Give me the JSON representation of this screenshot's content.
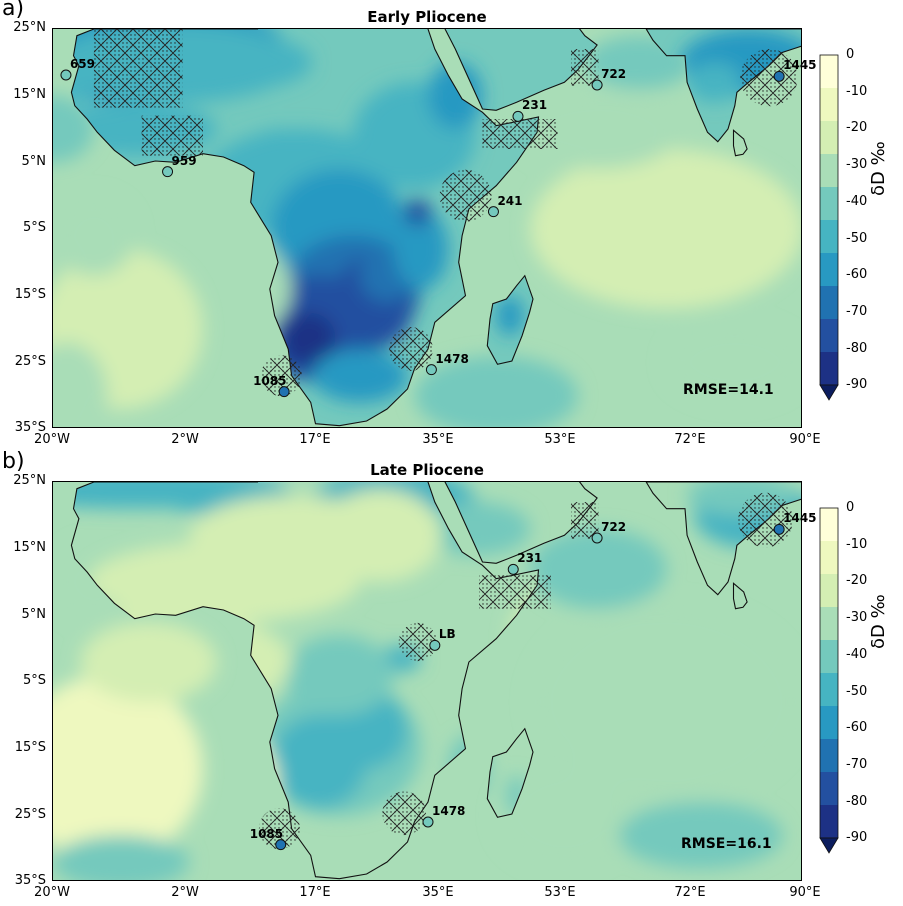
{
  "panels": [
    {
      "tag": "a)",
      "title": "Early Pliocene",
      "rmse": "RMSE=14.1",
      "sites": [
        {
          "label": "659",
          "lon": -18.1,
          "lat": 18.1,
          "depleted": false
        },
        {
          "label": "959",
          "lon": -3.2,
          "lat": 3.6,
          "depleted": false
        },
        {
          "label": "722",
          "lon": 59.8,
          "lat": 16.6,
          "depleted": false
        },
        {
          "label": "231",
          "lon": 48.2,
          "lat": 11.9,
          "depleted": false
        },
        {
          "label": "241",
          "lon": 44.6,
          "lat": -2.4,
          "depleted": false
        },
        {
          "label": "1445",
          "lon": 86.5,
          "lat": 17.9,
          "depleted": true
        },
        {
          "label": "1478",
          "lon": 35.5,
          "lat": -26.1,
          "depleted": false
        },
        {
          "label": "1085",
          "lon": 13.9,
          "lat": -29.4,
          "depleted": true
        }
      ]
    },
    {
      "tag": "b)",
      "title": "Late Pliocene",
      "rmse": "RMSE=16.1",
      "sites": [
        {
          "label": "722",
          "lon": 59.8,
          "lat": 16.6,
          "depleted": false
        },
        {
          "label": "231",
          "lon": 47.5,
          "lat": 11.9,
          "depleted": false
        },
        {
          "label": "LB",
          "lon": 36.0,
          "lat": 0.5,
          "depleted": false
        },
        {
          "label": "1445",
          "lon": 86.5,
          "lat": 17.9,
          "depleted": true
        },
        {
          "label": "1478",
          "lon": 35.0,
          "lat": -26.0,
          "depleted": false
        },
        {
          "label": "1085",
          "lon": 13.4,
          "lat": -29.4,
          "depleted": true
        }
      ]
    }
  ],
  "axes": {
    "lat_ticks": [
      "25°N",
      "15°N",
      "5°N",
      "5°S",
      "15°S",
      "25°S",
      "35°S"
    ],
    "lon_ticks": [
      "20°W",
      "2°W",
      "17°E",
      "35°E",
      "53°E",
      "72°E",
      "90°E"
    ],
    "lon_range": [
      -20,
      90
    ],
    "lat_range": [
      -35,
      25
    ]
  },
  "colorbar": {
    "unit": "δD ‰",
    "ticks": [
      "0",
      "-10",
      "-20",
      "-30",
      "-40",
      "-50",
      "-60",
      "-70",
      "-80",
      "-90"
    ],
    "colors": [
      "#ffffd9",
      "#eef8bf",
      "#d4eeb3",
      "#a9ddb7",
      "#74c9bd",
      "#46b4c2",
      "#2899c2",
      "#2072b1",
      "#2350a0",
      "#1d3185"
    ]
  }
}
